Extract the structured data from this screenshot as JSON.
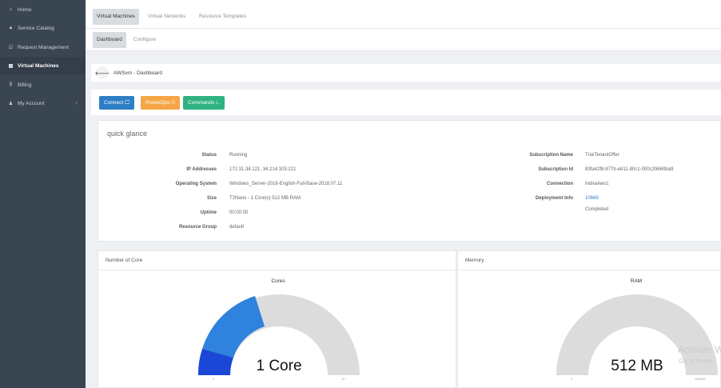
{
  "sidebar": {
    "items": [
      {
        "icon": "home-icon",
        "glyph": "⌂",
        "label": "Home",
        "active": false
      },
      {
        "icon": "service-catalog-icon",
        "glyph": "▲",
        "label": "Service Catalog",
        "active": false
      },
      {
        "icon": "request-management-icon",
        "glyph": "☑",
        "label": "Request Management",
        "active": false
      },
      {
        "icon": "virtual-machines-icon",
        "glyph": "▤",
        "label": "Virtual Machines",
        "active": true
      },
      {
        "icon": "billing-icon",
        "glyph": "$",
        "label": "Billing",
        "active": false
      },
      {
        "icon": "my-account-icon",
        "glyph": "♟",
        "label": "My Account",
        "active": false
      }
    ],
    "account_chevron": "‹"
  },
  "top_tabs": [
    "Virtual Machines",
    "Virtual Networks",
    "Resource Templates"
  ],
  "sub_tabs": [
    "Dashboard",
    "Configure"
  ],
  "breadcrumb": {
    "back_glyph": "🡐",
    "title": "AWSvm - Dashboard"
  },
  "actions": {
    "connect": "Connect 🖵",
    "power_ops": "PowerOps ⏻",
    "commands": "Commands ı.."
  },
  "quick_glance": {
    "title": "quick glance",
    "left": [
      {
        "label": "Status",
        "value": "Running"
      },
      {
        "label": "IP Addresses",
        "value": "172.31.38.121, 34.214.103.221"
      },
      {
        "label": "Operating System",
        "value": "Windows_Server-2016-English-Full-Base-2018.07.11"
      },
      {
        "label": "Size",
        "value": "T2Nano - 1 Core(s) 512 MB RAM"
      },
      {
        "label": "Uptime",
        "value": "00:00:00"
      },
      {
        "label": "Resource Group",
        "value": "default"
      }
    ],
    "right": [
      {
        "label": "Subscription Name",
        "value": "TrialTenantOffer"
      },
      {
        "label": "Subscription Id",
        "value": "83fa42f8-877b-e811-80c1-000c29660ba9"
      },
      {
        "label": "Connection",
        "value": "IndiraAws1"
      },
      {
        "label": "Deployment Info",
        "value": "10669"
      }
    ],
    "deployment_status": "Completed"
  },
  "cores_panel": {
    "heading": "Number of Core",
    "chart_title": "Cores",
    "center_text": "1 Core",
    "min_label": "0",
    "max_label": "10"
  },
  "memory_panel": {
    "heading": "Memory",
    "chart_title": "RAM",
    "center_text": "512 MB",
    "min_label": "0",
    "max_label": "100000"
  },
  "watermark": {
    "line1": "Activate W",
    "line2": "Go to Settin"
  },
  "colors": {
    "sidebar": "#3a4552",
    "gauge_track": "#dcdcdc",
    "gauge_blue": "#2f82dd",
    "gauge_dark_blue": "#1b47d6",
    "btn_connect": "#2d7ec4",
    "btn_power": "#f5a646",
    "btn_commands": "#2fb282"
  }
}
